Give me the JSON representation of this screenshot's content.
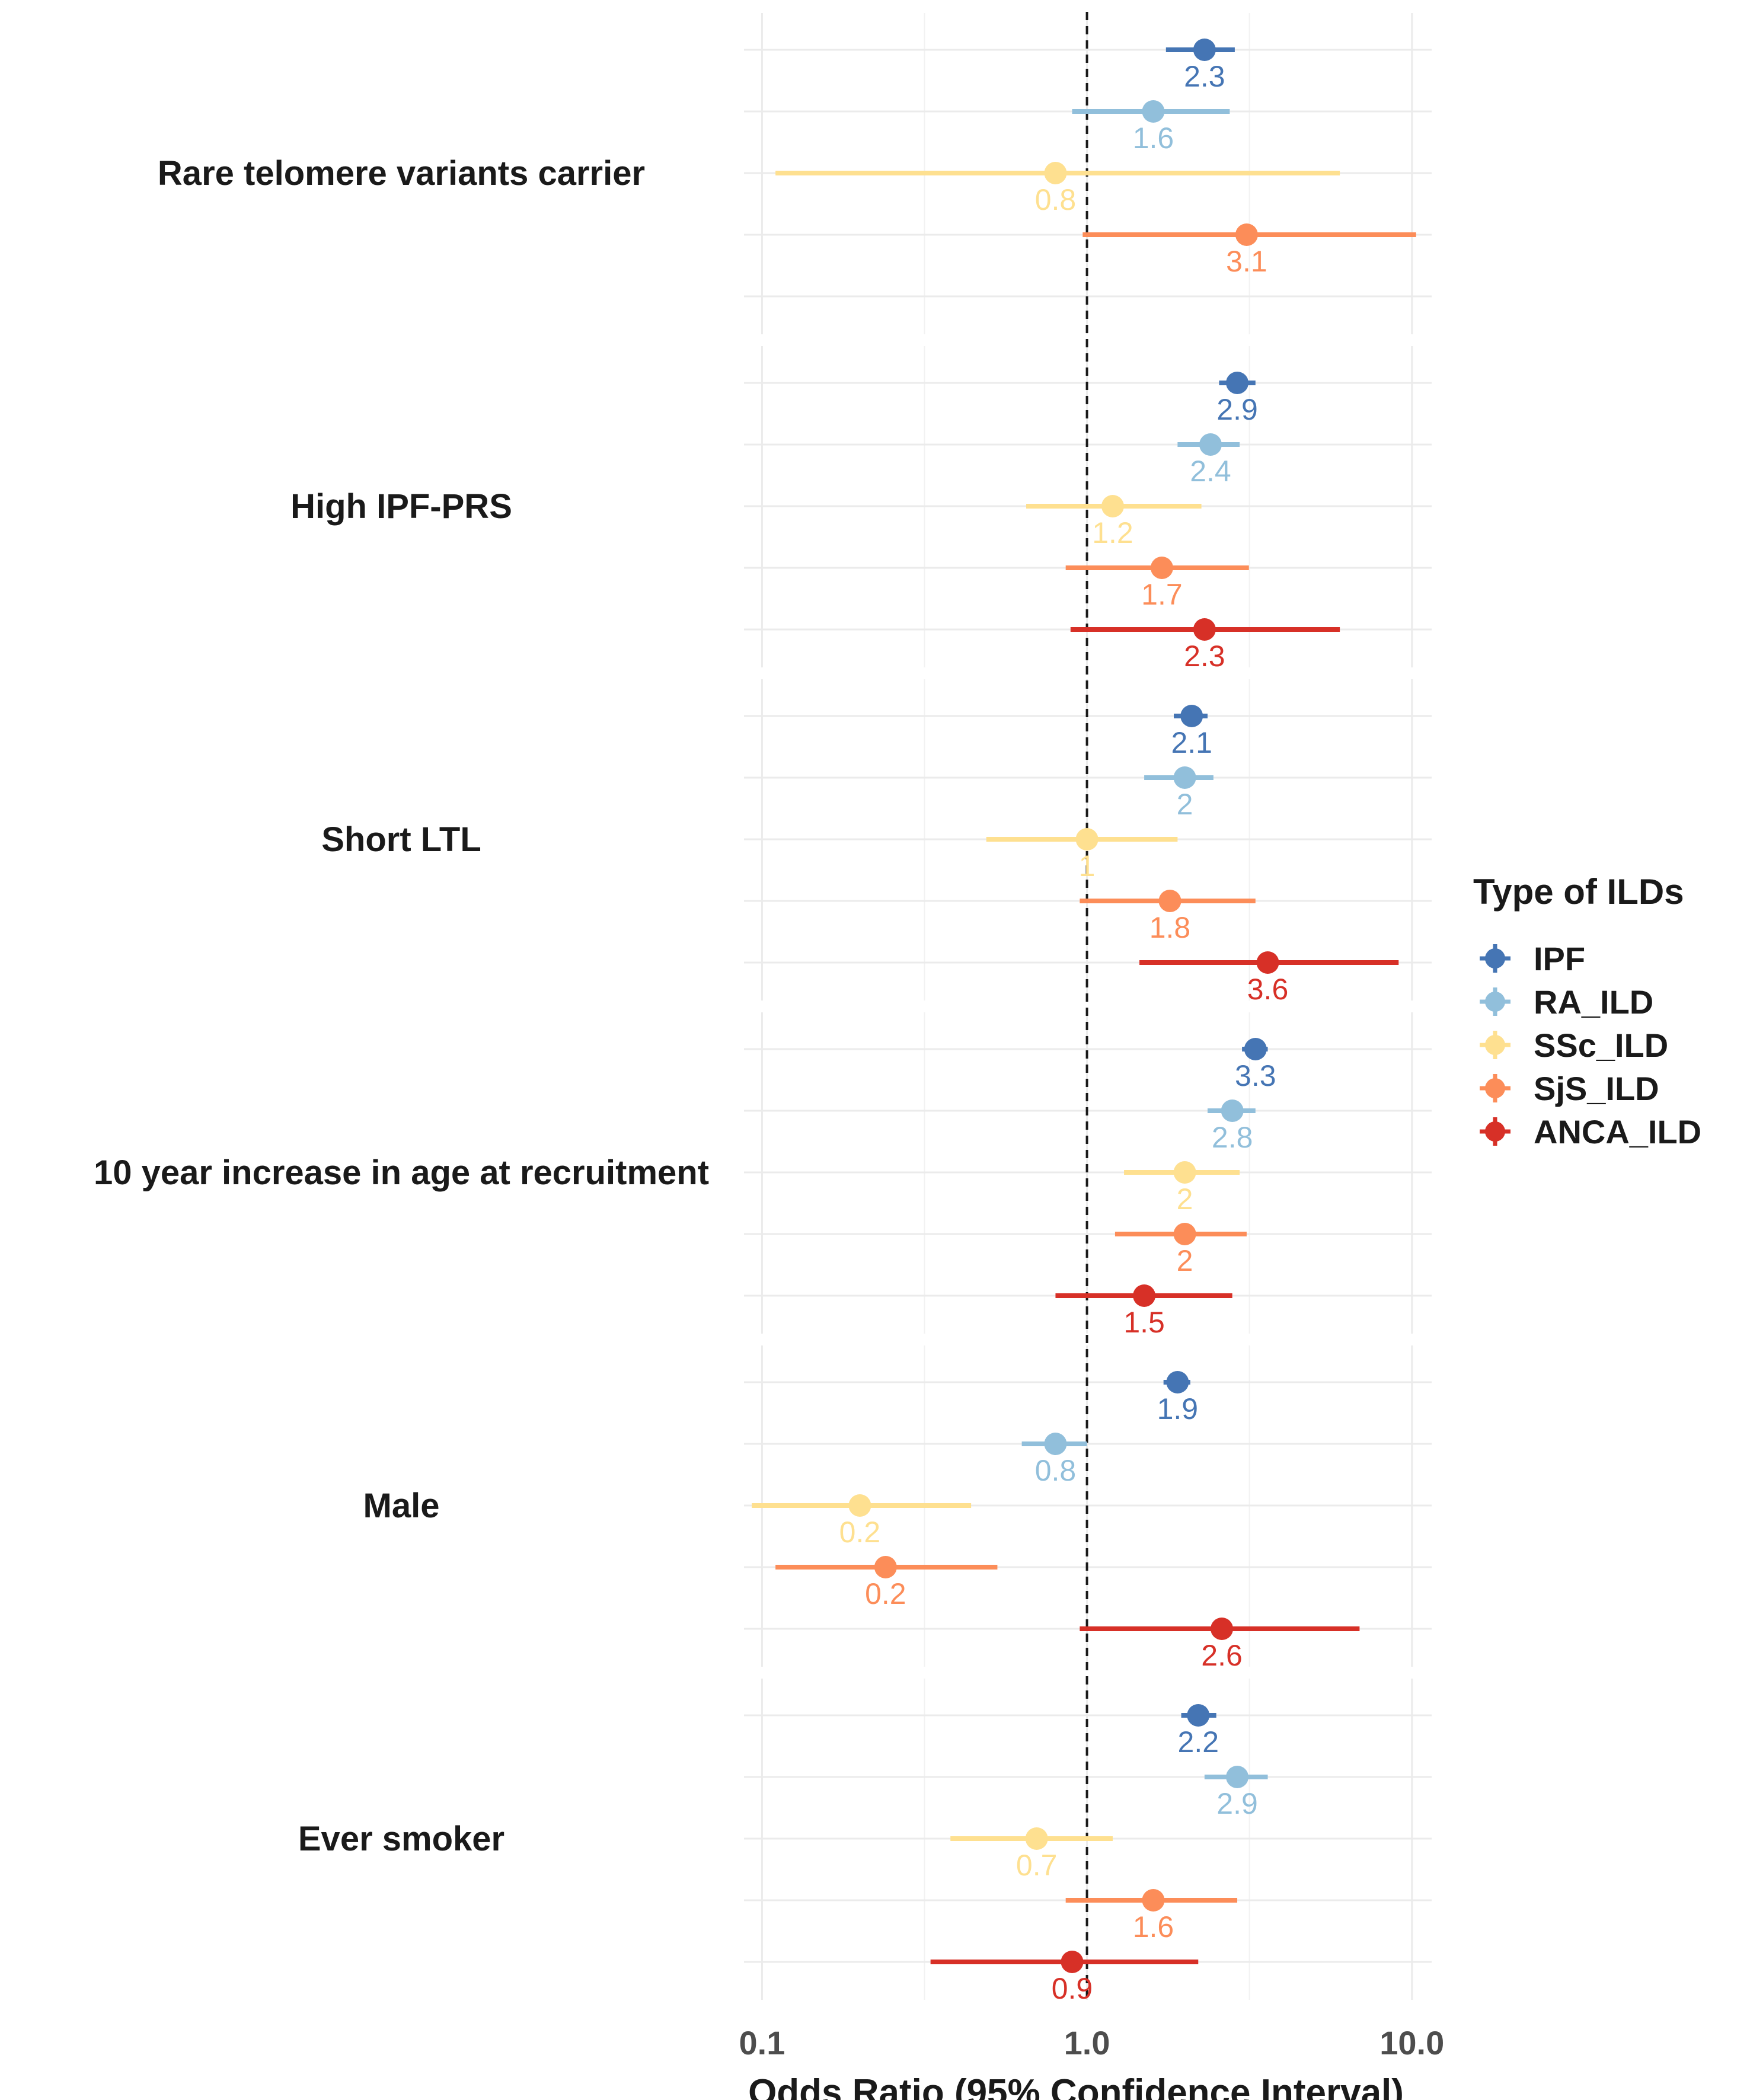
{
  "chart_data": {
    "type": "forest",
    "x_scale": "log10",
    "xlim": [
      0.088,
      11.5
    ],
    "xticks": [
      0.1,
      1.0,
      10.0
    ],
    "xtick_labels": [
      "0.1",
      "1.0",
      "10.0"
    ],
    "reference_line": 1.0,
    "xlabel": "Odds Ratio (95% Confidence Interval)",
    "grid": true,
    "legend": {
      "title": "Type of ILDs",
      "position": "right",
      "items": [
        {
          "name": "IPF",
          "color": "#4575B4"
        },
        {
          "name": "RA_ILD",
          "color": "#91BFDB"
        },
        {
          "name": "SSc_ILD",
          "color": "#FEE090"
        },
        {
          "name": "SjS_ILD",
          "color": "#FC8D59"
        },
        {
          "name": "ANCA_ILD",
          "color": "#D73027"
        }
      ]
    },
    "panels": [
      {
        "label": "Rare telomere variants carrier",
        "rows": [
          {
            "series": "IPF",
            "or": 2.3,
            "lo": 1.75,
            "hi": 2.85,
            "label": "2.3"
          },
          {
            "series": "RA_ILD",
            "or": 1.6,
            "lo": 0.9,
            "hi": 2.75,
            "label": "1.6"
          },
          {
            "series": "SSc_ILD",
            "or": 0.8,
            "lo": 0.11,
            "hi": 6.0,
            "label": "0.8"
          },
          {
            "series": "SjS_ILD",
            "or": 3.1,
            "lo": 0.97,
            "hi": 10.3,
            "label": "3.1"
          },
          null
        ]
      },
      {
        "label": "High IPF-PRS",
        "rows": [
          {
            "series": "IPF",
            "or": 2.9,
            "lo": 2.55,
            "hi": 3.3,
            "label": "2.9"
          },
          {
            "series": "RA_ILD",
            "or": 2.4,
            "lo": 1.9,
            "hi": 2.95,
            "label": "2.4"
          },
          {
            "series": "SSc_ILD",
            "or": 1.2,
            "lo": 0.65,
            "hi": 2.25,
            "label": "1.2"
          },
          {
            "series": "SjS_ILD",
            "or": 1.7,
            "lo": 0.86,
            "hi": 3.15,
            "label": "1.7"
          },
          {
            "series": "ANCA_ILD",
            "or": 2.3,
            "lo": 0.89,
            "hi": 6.0,
            "label": "2.3"
          }
        ]
      },
      {
        "label": "Short LTL",
        "rows": [
          {
            "series": "IPF",
            "or": 2.1,
            "lo": 1.85,
            "hi": 2.35,
            "label": "2.1"
          },
          {
            "series": "RA_ILD",
            "or": 2.0,
            "lo": 1.5,
            "hi": 2.45,
            "label": "2"
          },
          {
            "series": "SSc_ILD",
            "or": 1.0,
            "lo": 0.49,
            "hi": 1.9,
            "label": "1"
          },
          {
            "series": "SjS_ILD",
            "or": 1.8,
            "lo": 0.95,
            "hi": 3.3,
            "label": "1.8"
          },
          {
            "series": "ANCA_ILD",
            "or": 3.6,
            "lo": 1.45,
            "hi": 9.1,
            "label": "3.6"
          }
        ]
      },
      {
        "label": "10 year increase in age at recruitment",
        "rows": [
          {
            "series": "IPF",
            "or": 3.3,
            "lo": 3.0,
            "hi": 3.6,
            "label": "3.3"
          },
          {
            "series": "RA_ILD",
            "or": 2.8,
            "lo": 2.35,
            "hi": 3.3,
            "label": "2.8"
          },
          {
            "series": "SSc_ILD",
            "or": 2.0,
            "lo": 1.3,
            "hi": 2.95,
            "label": "2"
          },
          {
            "series": "SjS_ILD",
            "or": 2.0,
            "lo": 1.22,
            "hi": 3.1,
            "label": "2"
          },
          {
            "series": "ANCA_ILD",
            "or": 1.5,
            "lo": 0.8,
            "hi": 2.8,
            "label": "1.5"
          }
        ]
      },
      {
        "label": "Male",
        "rows": [
          {
            "series": "IPF",
            "or": 1.9,
            "lo": 1.72,
            "hi": 2.08,
            "label": "1.9"
          },
          {
            "series": "RA_ILD",
            "or": 0.8,
            "lo": 0.63,
            "hi": 1.0,
            "label": "0.8"
          },
          {
            "series": "SSc_ILD",
            "or": 0.2,
            "lo": 0.093,
            "hi": 0.44,
            "label": "0.2"
          },
          {
            "series": "SjS_ILD",
            "or": 0.24,
            "lo": 0.11,
            "hi": 0.53,
            "label": "0.2"
          },
          {
            "series": "ANCA_ILD",
            "or": 2.6,
            "lo": 0.95,
            "hi": 6.9,
            "label": "2.6"
          }
        ]
      },
      {
        "label": "Ever smoker",
        "rows": [
          {
            "series": "IPF",
            "or": 2.2,
            "lo": 1.95,
            "hi": 2.5,
            "label": "2.2"
          },
          {
            "series": "RA_ILD",
            "or": 2.9,
            "lo": 2.3,
            "hi": 3.6,
            "label": "2.9"
          },
          {
            "series": "SSc_ILD",
            "or": 0.7,
            "lo": 0.38,
            "hi": 1.2,
            "label": "0.7"
          },
          {
            "series": "SjS_ILD",
            "or": 1.6,
            "lo": 0.86,
            "hi": 2.9,
            "label": "1.6"
          },
          {
            "series": "ANCA_ILD",
            "or": 0.9,
            "lo": 0.33,
            "hi": 2.2,
            "label": "0.9"
          }
        ]
      }
    ]
  }
}
